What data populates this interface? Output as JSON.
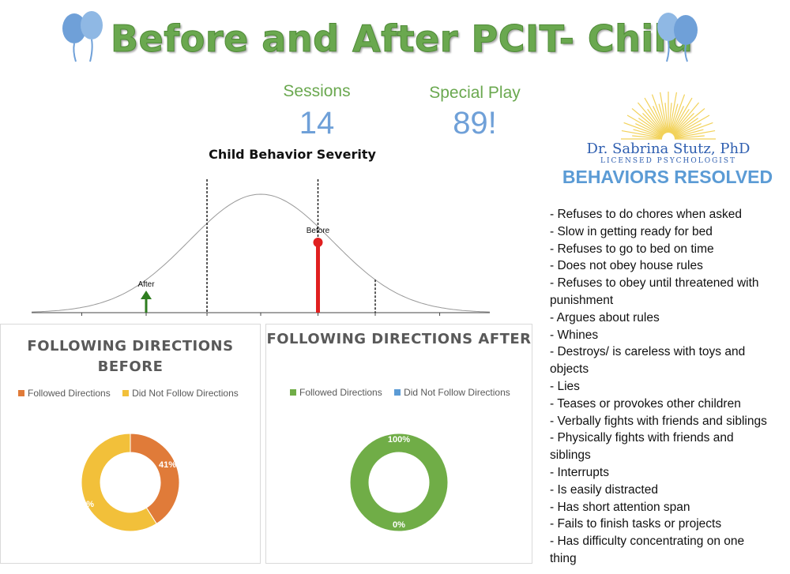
{
  "title": "Before and After PCIT- Child",
  "stats": {
    "sessions_label": "Sessions",
    "sessions_value": "14",
    "special_play_label": "Special Play",
    "special_play_value": "89!"
  },
  "logo": {
    "name": "Dr. Sabrina Stutz, PhD",
    "subtitle": "LICENSED PSYCHOLOGIST"
  },
  "behaviors": {
    "title": "BEHAVIORS RESOLVED",
    "items": [
      "- Refuses to do chores when asked",
      "- Slow in getting ready for bed",
      "- Refuses to go to bed on time",
      "- Does not obey house rules",
      "- Refuses to obey until threatened with",
      "punishment",
      "- Argues about rules",
      "- Whines",
      "- Destroys/ is careless with toys and",
      "objects",
      "- Lies",
      "- Teases or provokes other children",
      "- Verbally fights with friends and siblings",
      "- Physically fights with friends and",
      "siblings",
      "- Interrupts",
      "- Is easily distracted",
      "- Has short attention span",
      "- Fails to finish tasks or projects",
      "- Has difficulty concentrating on one",
      "thing"
    ]
  },
  "colors": {
    "title_green": "#6aa84f",
    "stat_blue": "#6fa0d8",
    "orange": "#e07b39",
    "yellow": "#f2c03a",
    "green": "#70ad47",
    "blue": "#5b9bd5",
    "before_red": "#e02020",
    "after_green": "#2e7d1f"
  },
  "chart_data": [
    {
      "type": "line",
      "title": "Child Behavior Severity",
      "markers": [
        {
          "label": "After",
          "position": -1.6
        },
        {
          "label": "Before",
          "position": 0.8
        }
      ],
      "reference_lines": [
        -0.75,
        0.8,
        1.6
      ],
      "xlim": [
        -3.2,
        3.2
      ]
    },
    {
      "type": "pie",
      "title": "FOLLOWING DIRECTIONS BEFORE",
      "categories": [
        "Followed Directions",
        "Did Not Follow Directions"
      ],
      "values": [
        41,
        59
      ],
      "labels": [
        "41%",
        "59%"
      ],
      "colors": [
        "#e07b39",
        "#f2c03a"
      ],
      "legend": "top"
    },
    {
      "type": "pie",
      "title": "FOLLOWING DIRECTIONS AFTER",
      "categories": [
        "Followed Directions",
        "Did Not Follow Directions"
      ],
      "values": [
        100,
        0
      ],
      "labels": [
        "100%",
        "0%"
      ],
      "colors": [
        "#70ad47",
        "#5b9bd5"
      ],
      "legend": "top"
    }
  ]
}
